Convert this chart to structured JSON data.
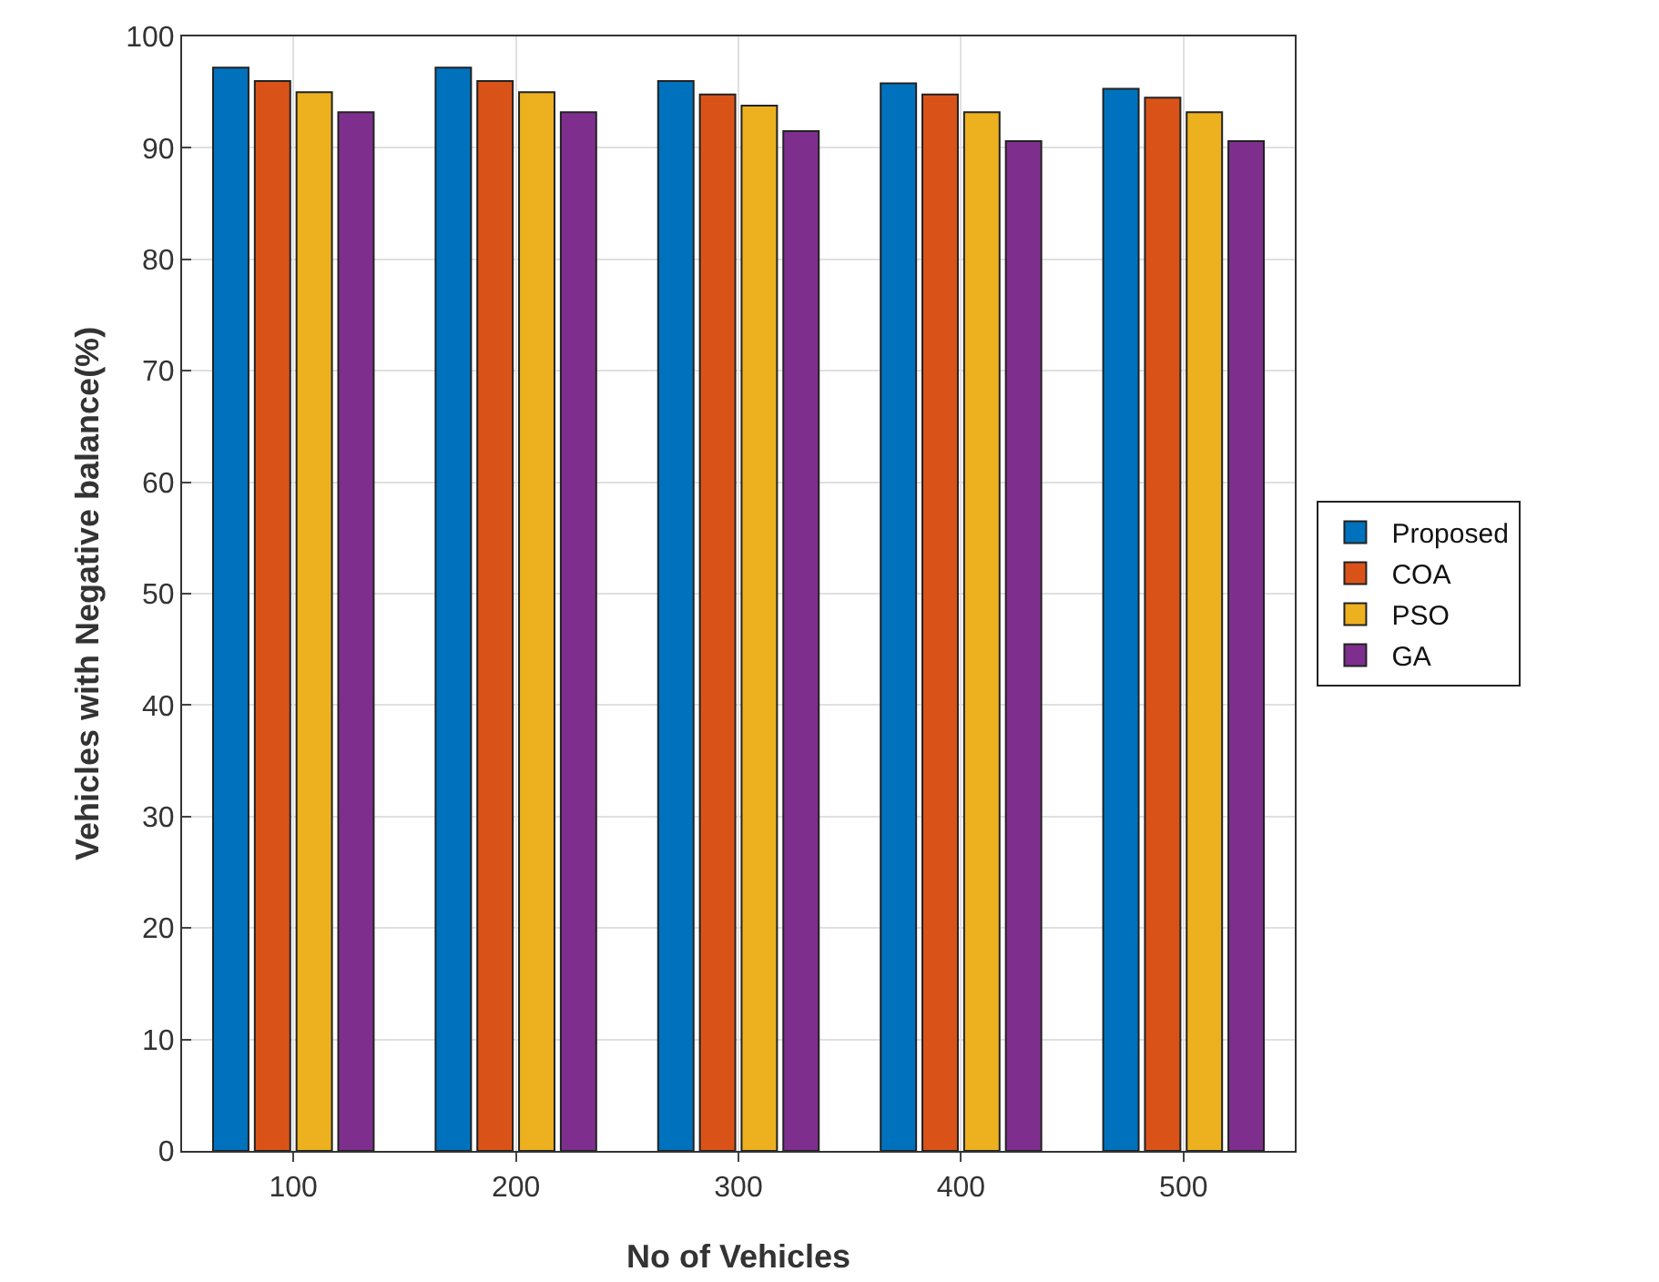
{
  "chart_data": {
    "type": "bar",
    "xlabel": "No of Vehicles",
    "ylabel": "Vehicles with Negative balance(%)",
    "categories": [
      "100",
      "200",
      "300",
      "400",
      "500"
    ],
    "series": [
      {
        "name": "Proposed",
        "color": "#0072bd",
        "values": [
          97.2,
          97.2,
          96,
          95.8,
          95.3
        ]
      },
      {
        "name": "COA",
        "color": "#d95319",
        "values": [
          96,
          96,
          94.8,
          94.8,
          94.5
        ]
      },
      {
        "name": "PSO",
        "color": "#edb120",
        "values": [
          95,
          95,
          93.8,
          93.2,
          93.2
        ]
      },
      {
        "name": "GA",
        "color": "#7e2f8e",
        "values": [
          93.2,
          93.2,
          91.5,
          90.6,
          90.6
        ]
      }
    ],
    "ylim": [
      0,
      100
    ],
    "yticks": [
      0,
      10,
      20,
      30,
      40,
      50,
      60,
      70,
      80,
      90,
      100
    ],
    "grid": true,
    "legend": "right"
  }
}
